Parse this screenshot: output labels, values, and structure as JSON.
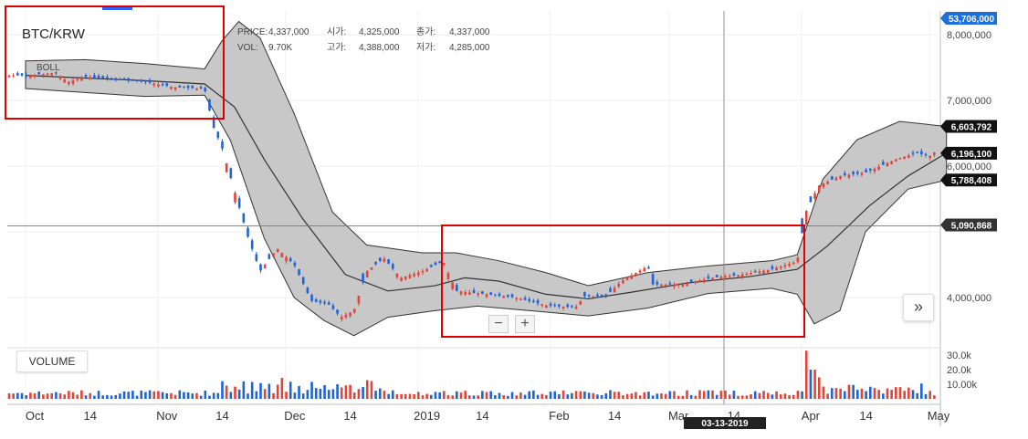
{
  "chart_data": {
    "type": "candlestick",
    "title": "BTC/KRW",
    "subtitle_label": "BOLL",
    "info": {
      "price_label": "PRICE:",
      "price_value": "4,337,000",
      "open_label": "시가:",
      "open_value": "4,325,000",
      "close_label": "종가:",
      "close_value": "4,337,000",
      "vol_label": "VOL:",
      "vol_value": "9.70K",
      "high_label": "고가:",
      "high_value": "4,388,000",
      "low_label": "저가:",
      "low_value": "4,285,000"
    },
    "x_ticks": [
      "Oct",
      "14",
      "Nov",
      "14",
      "Dec",
      "14",
      "2019",
      "14",
      "Feb",
      "14",
      "Mar",
      "14",
      "Apr",
      "14",
      "May"
    ],
    "y_ticks": [
      "8,000,000",
      "7,000,000",
      "6,000,000",
      "4,000,000"
    ],
    "y_range": [
      3400000,
      8200000
    ],
    "price_tags": [
      {
        "label": "53,706,000",
        "value": 8200000,
        "color": "#1e6fd9"
      },
      {
        "label": "6,603,792",
        "value": 6603792,
        "color": "#111111"
      },
      {
        "label": "6,196,100",
        "value": 6196100,
        "color": "#111111"
      },
      {
        "label": "5,788,408",
        "value": 5788408,
        "color": "#111111"
      },
      {
        "label": "5,090,868",
        "value": 5090868,
        "color": "#333333"
      }
    ],
    "crosshair": {
      "price": 5090868,
      "date_label": "03-13-2019"
    },
    "volume_label": "VOLUME",
    "volume_ticks": [
      "30.0k",
      "20.0k",
      "10.00k"
    ],
    "volume_range": [
      0,
      35000
    ],
    "colors": {
      "up": "#e0453a",
      "down": "#1f63d6",
      "band_fill": "#c8c8c8",
      "band_line": "#333333",
      "highlight": "#dd0000"
    },
    "series": {
      "close_path_points": [
        [
          "2018-10-01",
          7380000
        ],
        [
          "2018-10-08",
          7420000
        ],
        [
          "2018-10-11",
          7280000
        ],
        [
          "2018-10-15",
          7360000
        ],
        [
          "2018-10-22",
          7320000
        ],
        [
          "2018-10-29",
          7280000
        ],
        [
          "2018-11-05",
          7200000
        ],
        [
          "2018-11-12",
          7180000
        ],
        [
          "2018-11-14",
          6600000
        ],
        [
          "2018-11-16",
          6300000
        ],
        [
          "2018-11-20",
          5400000
        ],
        [
          "2018-11-22",
          4950000
        ],
        [
          "2018-11-25",
          4400000
        ],
        [
          "2018-11-29",
          4750000
        ],
        [
          "2018-12-03",
          4500000
        ],
        [
          "2018-12-07",
          3950000
        ],
        [
          "2018-12-11",
          3900000
        ],
        [
          "2018-12-14",
          3700000
        ],
        [
          "2018-12-17",
          3800000
        ],
        [
          "2018-12-20",
          4400000
        ],
        [
          "2018-12-24",
          4600000
        ],
        [
          "2018-12-28",
          4300000
        ],
        [
          "2019-01-02",
          4400000
        ],
        [
          "2019-01-07",
          4550000
        ],
        [
          "2019-01-10",
          4100000
        ],
        [
          "2019-01-17",
          4050000
        ],
        [
          "2019-01-24",
          4000000
        ],
        [
          "2019-01-31",
          3880000
        ],
        [
          "2019-02-07",
          3850000
        ],
        [
          "2019-02-09",
          4020000
        ],
        [
          "2019-02-14",
          4020000
        ],
        [
          "2019-02-18",
          4260000
        ],
        [
          "2019-02-24",
          4480000
        ],
        [
          "2019-02-25",
          4200000
        ],
        [
          "2019-03-04",
          4200000
        ],
        [
          "2019-03-11",
          4300000
        ],
        [
          "2019-03-18",
          4350000
        ],
        [
          "2019-03-25",
          4430000
        ],
        [
          "2019-03-31",
          4550000
        ],
        [
          "2019-04-02",
          5300000
        ],
        [
          "2019-04-05",
          5700000
        ],
        [
          "2019-04-10",
          5850000
        ],
        [
          "2019-04-16",
          5900000
        ],
        [
          "2019-04-23",
          6100000
        ],
        [
          "2019-04-28",
          6200000
        ],
        [
          "2019-05-01",
          6150000
        ],
        [
          "2019-05-05",
          6350000
        ]
      ],
      "boll_mid_points": [
        [
          "2018-10-01",
          7380000
        ],
        [
          "2018-10-15",
          7340000
        ],
        [
          "2018-10-29",
          7300000
        ],
        [
          "2018-11-12",
          7250000
        ],
        [
          "2018-11-19",
          6900000
        ],
        [
          "2018-11-26",
          6100000
        ],
        [
          "2018-12-05",
          5200000
        ],
        [
          "2018-12-15",
          4350000
        ],
        [
          "2018-12-25",
          4100000
        ],
        [
          "2019-01-05",
          4180000
        ],
        [
          "2019-01-12",
          4300000
        ],
        [
          "2019-01-20",
          4250000
        ],
        [
          "2019-01-31",
          4050000
        ],
        [
          "2019-02-10",
          3980000
        ],
        [
          "2019-02-20",
          4080000
        ],
        [
          "2019-03-05",
          4220000
        ],
        [
          "2019-03-20",
          4320000
        ],
        [
          "2019-03-31",
          4430000
        ],
        [
          "2019-04-07",
          4780000
        ],
        [
          "2019-04-17",
          5400000
        ],
        [
          "2019-04-26",
          5850000
        ],
        [
          "2019-05-05",
          6200000
        ]
      ],
      "boll_upper_points": [
        [
          "2018-10-01",
          7600000
        ],
        [
          "2018-10-15",
          7620000
        ],
        [
          "2018-10-29",
          7560000
        ],
        [
          "2018-11-12",
          7480000
        ],
        [
          "2018-11-16",
          7900000
        ],
        [
          "2018-11-20",
          8200000
        ],
        [
          "2018-11-25",
          7950000
        ],
        [
          "2018-12-03",
          6800000
        ],
        [
          "2018-12-12",
          5300000
        ],
        [
          "2018-12-20",
          4800000
        ],
        [
          "2019-01-02",
          4680000
        ],
        [
          "2019-01-10",
          4680000
        ],
        [
          "2019-01-20",
          4560000
        ],
        [
          "2019-01-31",
          4380000
        ],
        [
          "2019-02-10",
          4180000
        ],
        [
          "2019-02-24",
          4380000
        ],
        [
          "2019-03-10",
          4480000
        ],
        [
          "2019-03-25",
          4560000
        ],
        [
          "2019-03-31",
          4650000
        ],
        [
          "2019-04-06",
          5800000
        ],
        [
          "2019-04-14",
          6400000
        ],
        [
          "2019-04-24",
          6680000
        ],
        [
          "2019-05-05",
          6603792
        ]
      ],
      "boll_lower_points": [
        [
          "2018-10-01",
          7180000
        ],
        [
          "2018-10-15",
          7120000
        ],
        [
          "2018-10-29",
          7060000
        ],
        [
          "2018-11-12",
          7080000
        ],
        [
          "2018-11-18",
          6400000
        ],
        [
          "2018-11-26",
          4900000
        ],
        [
          "2018-12-03",
          4000000
        ],
        [
          "2018-12-10",
          3650000
        ],
        [
          "2018-12-17",
          3420000
        ],
        [
          "2018-12-25",
          3700000
        ],
        [
          "2019-01-05",
          3800000
        ],
        [
          "2019-01-15",
          3870000
        ],
        [
          "2019-01-31",
          3780000
        ],
        [
          "2019-02-10",
          3720000
        ],
        [
          "2019-02-24",
          3840000
        ],
        [
          "2019-03-10",
          4060000
        ],
        [
          "2019-03-25",
          4140000
        ],
        [
          "2019-03-31",
          4050000
        ],
        [
          "2019-04-04",
          3600000
        ],
        [
          "2019-04-10",
          3800000
        ],
        [
          "2019-04-16",
          5000000
        ],
        [
          "2019-04-26",
          5650000
        ],
        [
          "2019-05-05",
          5788408
        ]
      ]
    }
  }
}
